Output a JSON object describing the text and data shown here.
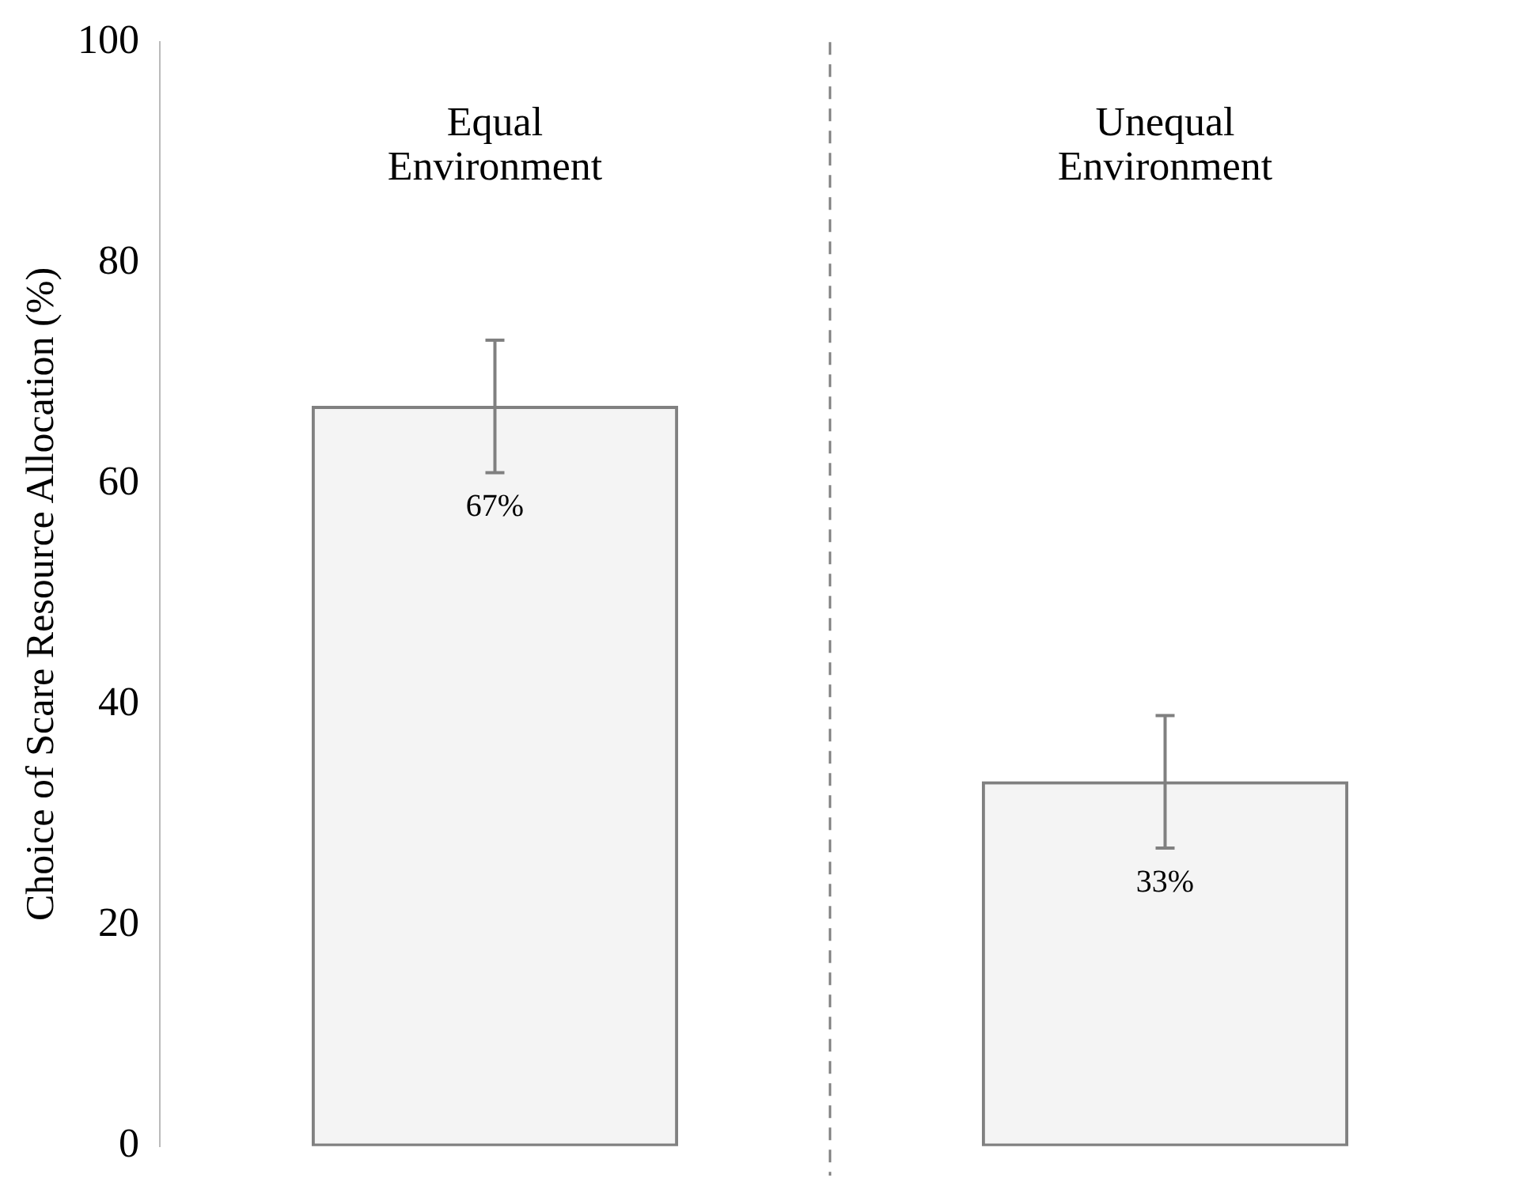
{
  "chart_data": {
    "type": "bar",
    "ylabel": "Choice of Scare Resource Allocation (%)",
    "categories": [
      "Equal Environment",
      "Unequal Environment"
    ],
    "values": [
      67,
      33
    ],
    "color": "#f4f4f4",
    "errors": [
      6,
      6
    ],
    "value_labels": [
      "67%",
      "33%"
    ],
    "ylim": [
      0,
      100
    ],
    "yticks": [
      0,
      20,
      40,
      60,
      80,
      100
    ],
    "grid": false,
    "legend": false
  }
}
